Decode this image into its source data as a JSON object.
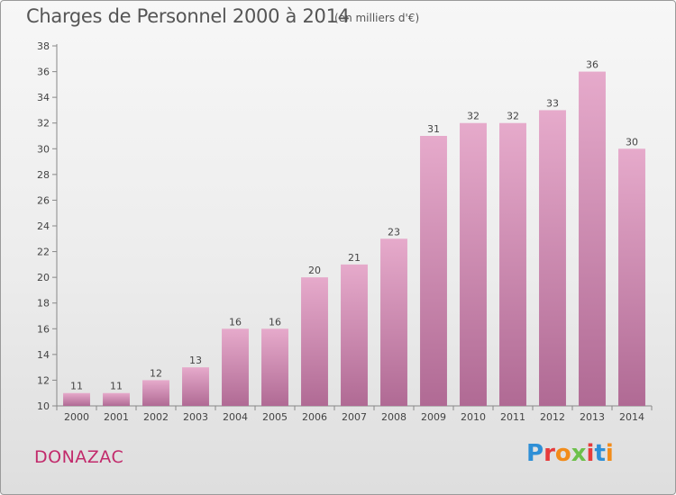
{
  "header": {
    "title": "Charges de Personnel 2000 à 2014",
    "subtitle": "(en milliers d'€)"
  },
  "footer": {
    "city": "DONAZAC",
    "logo": [
      "P",
      "r",
      "o",
      "x",
      "i",
      "t",
      "i"
    ]
  },
  "colors": {
    "bar_top": "#e6aacb",
    "bar_bottom": "#b06a94",
    "city": "#c22a6b"
  },
  "chart_data": {
    "type": "bar",
    "categories": [
      "2000",
      "2001",
      "2002",
      "2003",
      "2004",
      "2005",
      "2006",
      "2007",
      "2008",
      "2009",
      "2010",
      "2011",
      "2012",
      "2013",
      "2014"
    ],
    "values": [
      11,
      11,
      12,
      13,
      16,
      16,
      20,
      21,
      23,
      31,
      32,
      32,
      33,
      36,
      30
    ],
    "title": "Charges de Personnel 2000 à 2014",
    "subtitle": "(en milliers d'€)",
    "xlabel": "",
    "ylabel": "",
    "ylim": [
      10,
      38
    ],
    "yticks": [
      10,
      12,
      14,
      16,
      18,
      20,
      22,
      24,
      26,
      28,
      30,
      32,
      34,
      36,
      38
    ],
    "grid": false,
    "legend": "none"
  }
}
